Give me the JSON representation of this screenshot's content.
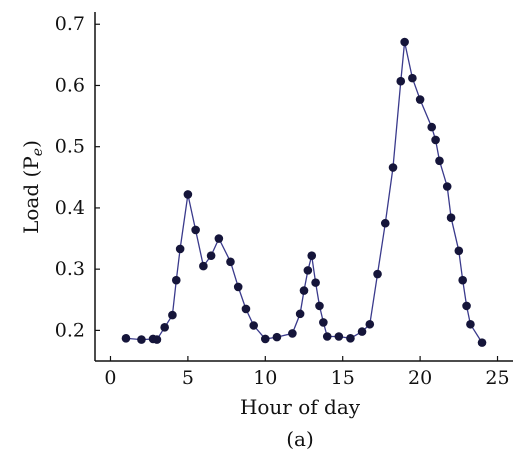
{
  "chart_data": {
    "type": "line",
    "title": "",
    "xlabel": "Hour of day",
    "ylabel_main": "Load (P",
    "ylabel_sub": "e",
    "ylabel_close": ")",
    "caption": "(a)",
    "xlim": [
      -1,
      26
    ],
    "ylim": [
      0.15,
      0.72
    ],
    "xticks": [
      0,
      5,
      10,
      15,
      20,
      25
    ],
    "xtick_labels": [
      "0",
      "5",
      "10",
      "15",
      "20",
      "25"
    ],
    "yticks": [
      0.2,
      0.3,
      0.4,
      0.5,
      0.6,
      0.7
    ],
    "ytick_labels": [
      "0.2",
      "0.3",
      "0.4",
      "0.5",
      "0.6",
      "0.7"
    ],
    "grid": false,
    "series": [
      {
        "color": "#15153a",
        "x": [
          1,
          2,
          2.75,
          3,
          3.5,
          4,
          4.25,
          4.5,
          5,
          5.5,
          6,
          6.5,
          7,
          7.75,
          8.25,
          8.75,
          9.25,
          10,
          10.75,
          11.75,
          12.25,
          12.5,
          12.75,
          13,
          13.25,
          13.5,
          13.75,
          14,
          14.75,
          15.5,
          16.25,
          16.75,
          17.25,
          17.75,
          18.25,
          18.75,
          19,
          19.5,
          20,
          20.75,
          21,
          21.25,
          21.75,
          22,
          22.5,
          22.75,
          23,
          23.25,
          24
        ],
        "y": [
          0.187,
          0.185,
          0.186,
          0.185,
          0.205,
          0.225,
          0.282,
          0.333,
          0.422,
          0.364,
          0.305,
          0.322,
          0.35,
          0.312,
          0.271,
          0.235,
          0.208,
          0.186,
          0.189,
          0.195,
          0.227,
          0.265,
          0.298,
          0.322,
          0.278,
          0.24,
          0.213,
          0.19,
          0.19,
          0.187,
          0.198,
          0.21,
          0.292,
          0.375,
          0.466,
          0.607,
          0.671,
          0.612,
          0.577,
          0.532,
          0.511,
          0.477,
          0.435,
          0.384,
          0.33,
          0.282,
          0.24,
          0.21,
          0.18
        ]
      }
    ]
  }
}
